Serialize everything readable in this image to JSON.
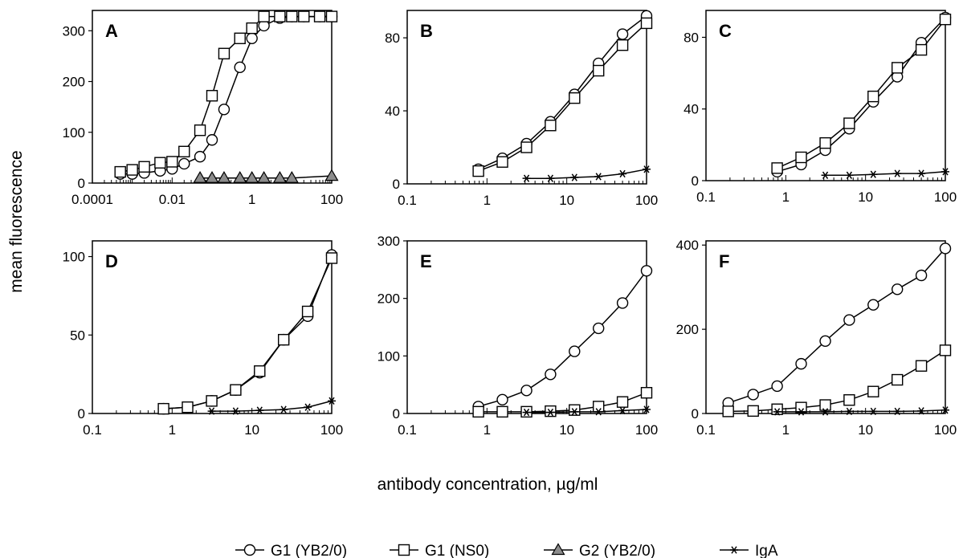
{
  "figure": {
    "ylabel": "mean fluorescence",
    "xlabel": "antibody concentration, µg/ml",
    "legend": [
      {
        "label": "G1 (YB2/0)",
        "marker": "circle"
      },
      {
        "label": "G1 (NS0)",
        "marker": "square"
      },
      {
        "label": "G2 (YB2/0)",
        "marker": "triangle"
      },
      {
        "label": "IgA",
        "marker": "star"
      }
    ],
    "colors": {
      "line": "#000000",
      "open_fill": "#ffffff",
      "triangle_fill": "#8c8c8c"
    }
  },
  "chart_data": [
    {
      "type": "line",
      "panel_label": "A",
      "xscale": "log",
      "xlim": [
        0.0001,
        100
      ],
      "ylim": [
        0,
        340
      ],
      "xticks": [
        0.0001,
        0.01,
        1,
        100
      ],
      "xtick_labels": [
        "0.0001",
        "0.01",
        "1",
        "100"
      ],
      "yticks": [
        0,
        100,
        200,
        300
      ],
      "ytick_labels": [
        "0",
        "100",
        "200",
        "300"
      ],
      "series": [
        {
          "name": "G1 (YB2/0)",
          "marker": "circle",
          "x": [
            0.0005,
            0.001,
            0.002,
            0.005,
            0.01,
            0.02,
            0.05,
            0.1,
            0.2,
            0.5,
            1,
            2,
            5,
            10,
            20,
            50,
            100
          ],
          "y": [
            18,
            18,
            20,
            24,
            28,
            38,
            52,
            85,
            145,
            228,
            285,
            310,
            325,
            328,
            328,
            328,
            328
          ]
        },
        {
          "name": "G1 (NS0)",
          "marker": "square",
          "x": [
            0.0005,
            0.001,
            0.002,
            0.005,
            0.01,
            0.02,
            0.05,
            0.1,
            0.2,
            0.5,
            1,
            2,
            5,
            10,
            20,
            50,
            100
          ],
          "y": [
            22,
            26,
            32,
            40,
            42,
            62,
            104,
            172,
            255,
            285,
            305,
            328,
            328,
            328,
            328,
            328,
            328
          ]
        },
        {
          "name": "G2 (YB2/0)",
          "marker": "triangle",
          "x": [
            0.05,
            0.1,
            0.2,
            0.5,
            1,
            2,
            5,
            10,
            100
          ],
          "y": [
            10,
            10,
            10,
            10,
            10,
            10,
            10,
            10,
            14
          ]
        }
      ]
    },
    {
      "type": "line",
      "panel_label": "B",
      "xscale": "log",
      "xlim": [
        0.1,
        100
      ],
      "ylim": [
        0,
        95
      ],
      "xticks": [
        0.1,
        1,
        10,
        100
      ],
      "xtick_labels": [
        "0.1",
        "1",
        "10",
        "100"
      ],
      "yticks": [
        0,
        40,
        80
      ],
      "ytick_labels": [
        "0",
        "40",
        "80"
      ],
      "series": [
        {
          "name": "G1 (YB2/0)",
          "marker": "circle",
          "x": [
            0.78,
            1.56,
            3.13,
            6.25,
            12.5,
            25,
            50,
            100
          ],
          "y": [
            8,
            14,
            22,
            34,
            49,
            66,
            82,
            92
          ]
        },
        {
          "name": "G1 (NS0)",
          "marker": "square",
          "x": [
            0.78,
            1.56,
            3.13,
            6.25,
            12.5,
            25,
            50,
            100
          ],
          "y": [
            7,
            12,
            20,
            32,
            47,
            62,
            76,
            88
          ]
        },
        {
          "name": "IgA",
          "marker": "star",
          "x": [
            3.13,
            6.25,
            12.5,
            25,
            50,
            100
          ],
          "y": [
            3,
            3,
            3.5,
            4,
            5.5,
            8
          ]
        }
      ]
    },
    {
      "type": "line",
      "panel_label": "C",
      "xscale": "log",
      "xlim": [
        0.1,
        100
      ],
      "ylim": [
        0,
        95
      ],
      "xticks": [
        0.1,
        1,
        10,
        100
      ],
      "xtick_labels": [
        "0.1",
        "1",
        "10",
        "100"
      ],
      "yticks": [
        0,
        40,
        80
      ],
      "ytick_labels": [
        "0",
        "40",
        "80"
      ],
      "series": [
        {
          "name": "G1 (YB2/0)",
          "marker": "circle",
          "x": [
            0.78,
            1.56,
            3.13,
            6.25,
            12.5,
            25,
            50,
            100
          ],
          "y": [
            5,
            9,
            17,
            29,
            44,
            58,
            77,
            91
          ]
        },
        {
          "name": "G1 (NS0)",
          "marker": "square",
          "x": [
            0.78,
            1.56,
            3.13,
            6.25,
            12.5,
            25,
            50,
            100
          ],
          "y": [
            7,
            13,
            21,
            32,
            47,
            63,
            73,
            90
          ]
        },
        {
          "name": "IgA",
          "marker": "star",
          "x": [
            3.13,
            6.25,
            12.5,
            25,
            50,
            100
          ],
          "y": [
            3,
            3,
            3.5,
            4,
            4,
            5
          ]
        }
      ]
    },
    {
      "type": "line",
      "panel_label": "D",
      "xscale": "log",
      "xlim": [
        0.1,
        100
      ],
      "ylim": [
        0,
        110
      ],
      "xticks": [
        0.1,
        1,
        10,
        100
      ],
      "xtick_labels": [
        "0.1",
        "1",
        "10",
        "100"
      ],
      "yticks": [
        0,
        50,
        100
      ],
      "ytick_labels": [
        "0",
        "50",
        "100"
      ],
      "series": [
        {
          "name": "G1 (YB2/0)",
          "marker": "circle",
          "x": [
            0.78,
            1.56,
            3.13,
            6.25,
            12.5,
            25,
            50,
            100
          ],
          "y": [
            3,
            4,
            8,
            15,
            26,
            47,
            62,
            101
          ]
        },
        {
          "name": "G1 (NS0)",
          "marker": "square",
          "x": [
            0.78,
            1.56,
            3.13,
            6.25,
            12.5,
            25,
            50,
            100
          ],
          "y": [
            3,
            4,
            8,
            15,
            27,
            47,
            65,
            99
          ]
        },
        {
          "name": "IgA",
          "marker": "star",
          "x": [
            3.13,
            6.25,
            12.5,
            25,
            50,
            100
          ],
          "y": [
            1.5,
            1.5,
            2,
            2.5,
            4,
            8
          ]
        }
      ]
    },
    {
      "type": "line",
      "panel_label": "E",
      "xscale": "log",
      "xlim": [
        0.1,
        100
      ],
      "ylim": [
        0,
        300
      ],
      "xticks": [
        0.1,
        1,
        10,
        100
      ],
      "xtick_labels": [
        "0.1",
        "1",
        "10",
        "100"
      ],
      "yticks": [
        0,
        100,
        200,
        300
      ],
      "ytick_labels": [
        "0",
        "100",
        "200",
        "300"
      ],
      "series": [
        {
          "name": "G1 (YB2/0)",
          "marker": "circle",
          "x": [
            0.78,
            1.56,
            3.13,
            6.25,
            12.5,
            25,
            50,
            100
          ],
          "y": [
            12,
            24,
            40,
            68,
            108,
            148,
            192,
            248
          ]
        },
        {
          "name": "G1 (NS0)",
          "marker": "square",
          "x": [
            0.78,
            1.56,
            3.13,
            6.25,
            12.5,
            25,
            50,
            100
          ],
          "y": [
            3,
            3,
            3,
            4,
            6,
            12,
            20,
            36
          ]
        },
        {
          "name": "IgA",
          "marker": "star",
          "x": [
            3.13,
            6.25,
            12.5,
            25,
            50,
            100
          ],
          "y": [
            2,
            2,
            3,
            3,
            5,
            7
          ]
        }
      ]
    },
    {
      "type": "line",
      "panel_label": "F",
      "xscale": "log",
      "xlim": [
        0.1,
        100
      ],
      "ylim": [
        0,
        410
      ],
      "xticks": [
        0.1,
        1,
        10,
        100
      ],
      "xtick_labels": [
        "0.1",
        "1",
        "10",
        "100"
      ],
      "yticks": [
        0,
        200,
        400
      ],
      "ytick_labels": [
        "0",
        "200",
        "400"
      ],
      "series": [
        {
          "name": "G1 (YB2/0)",
          "marker": "circle",
          "x": [
            0.19,
            0.39,
            0.78,
            1.56,
            3.13,
            6.25,
            12.5,
            25,
            50,
            100
          ],
          "y": [
            25,
            45,
            65,
            118,
            172,
            222,
            258,
            295,
            328,
            392
          ]
        },
        {
          "name": "G1 (NS0)",
          "marker": "square",
          "x": [
            0.19,
            0.39,
            0.78,
            1.56,
            3.13,
            6.25,
            12.5,
            25,
            50,
            100
          ],
          "y": [
            5,
            6,
            10,
            14,
            20,
            32,
            52,
            80,
            113,
            150
          ]
        },
        {
          "name": "IgA",
          "marker": "star",
          "x": [
            0.78,
            1.56,
            3.13,
            6.25,
            12.5,
            25,
            50,
            100
          ],
          "y": [
            4,
            4,
            4,
            5,
            5,
            5,
            6,
            8
          ]
        }
      ]
    }
  ]
}
